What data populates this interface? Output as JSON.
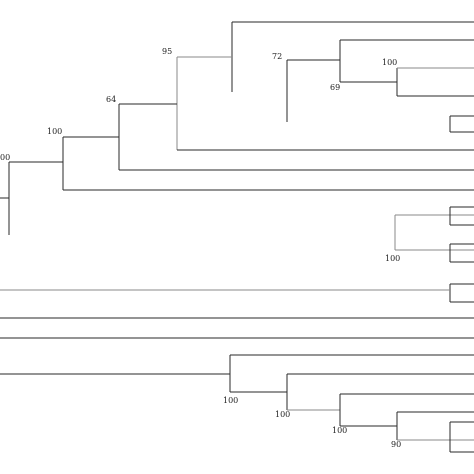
{
  "diagram": {
    "type": "phylogenetic-tree",
    "bootstrap_labels": [
      "95",
      "72",
      "100",
      "64",
      "69",
      "100",
      "00",
      "100",
      "100",
      "100",
      "100",
      "90"
    ]
  }
}
